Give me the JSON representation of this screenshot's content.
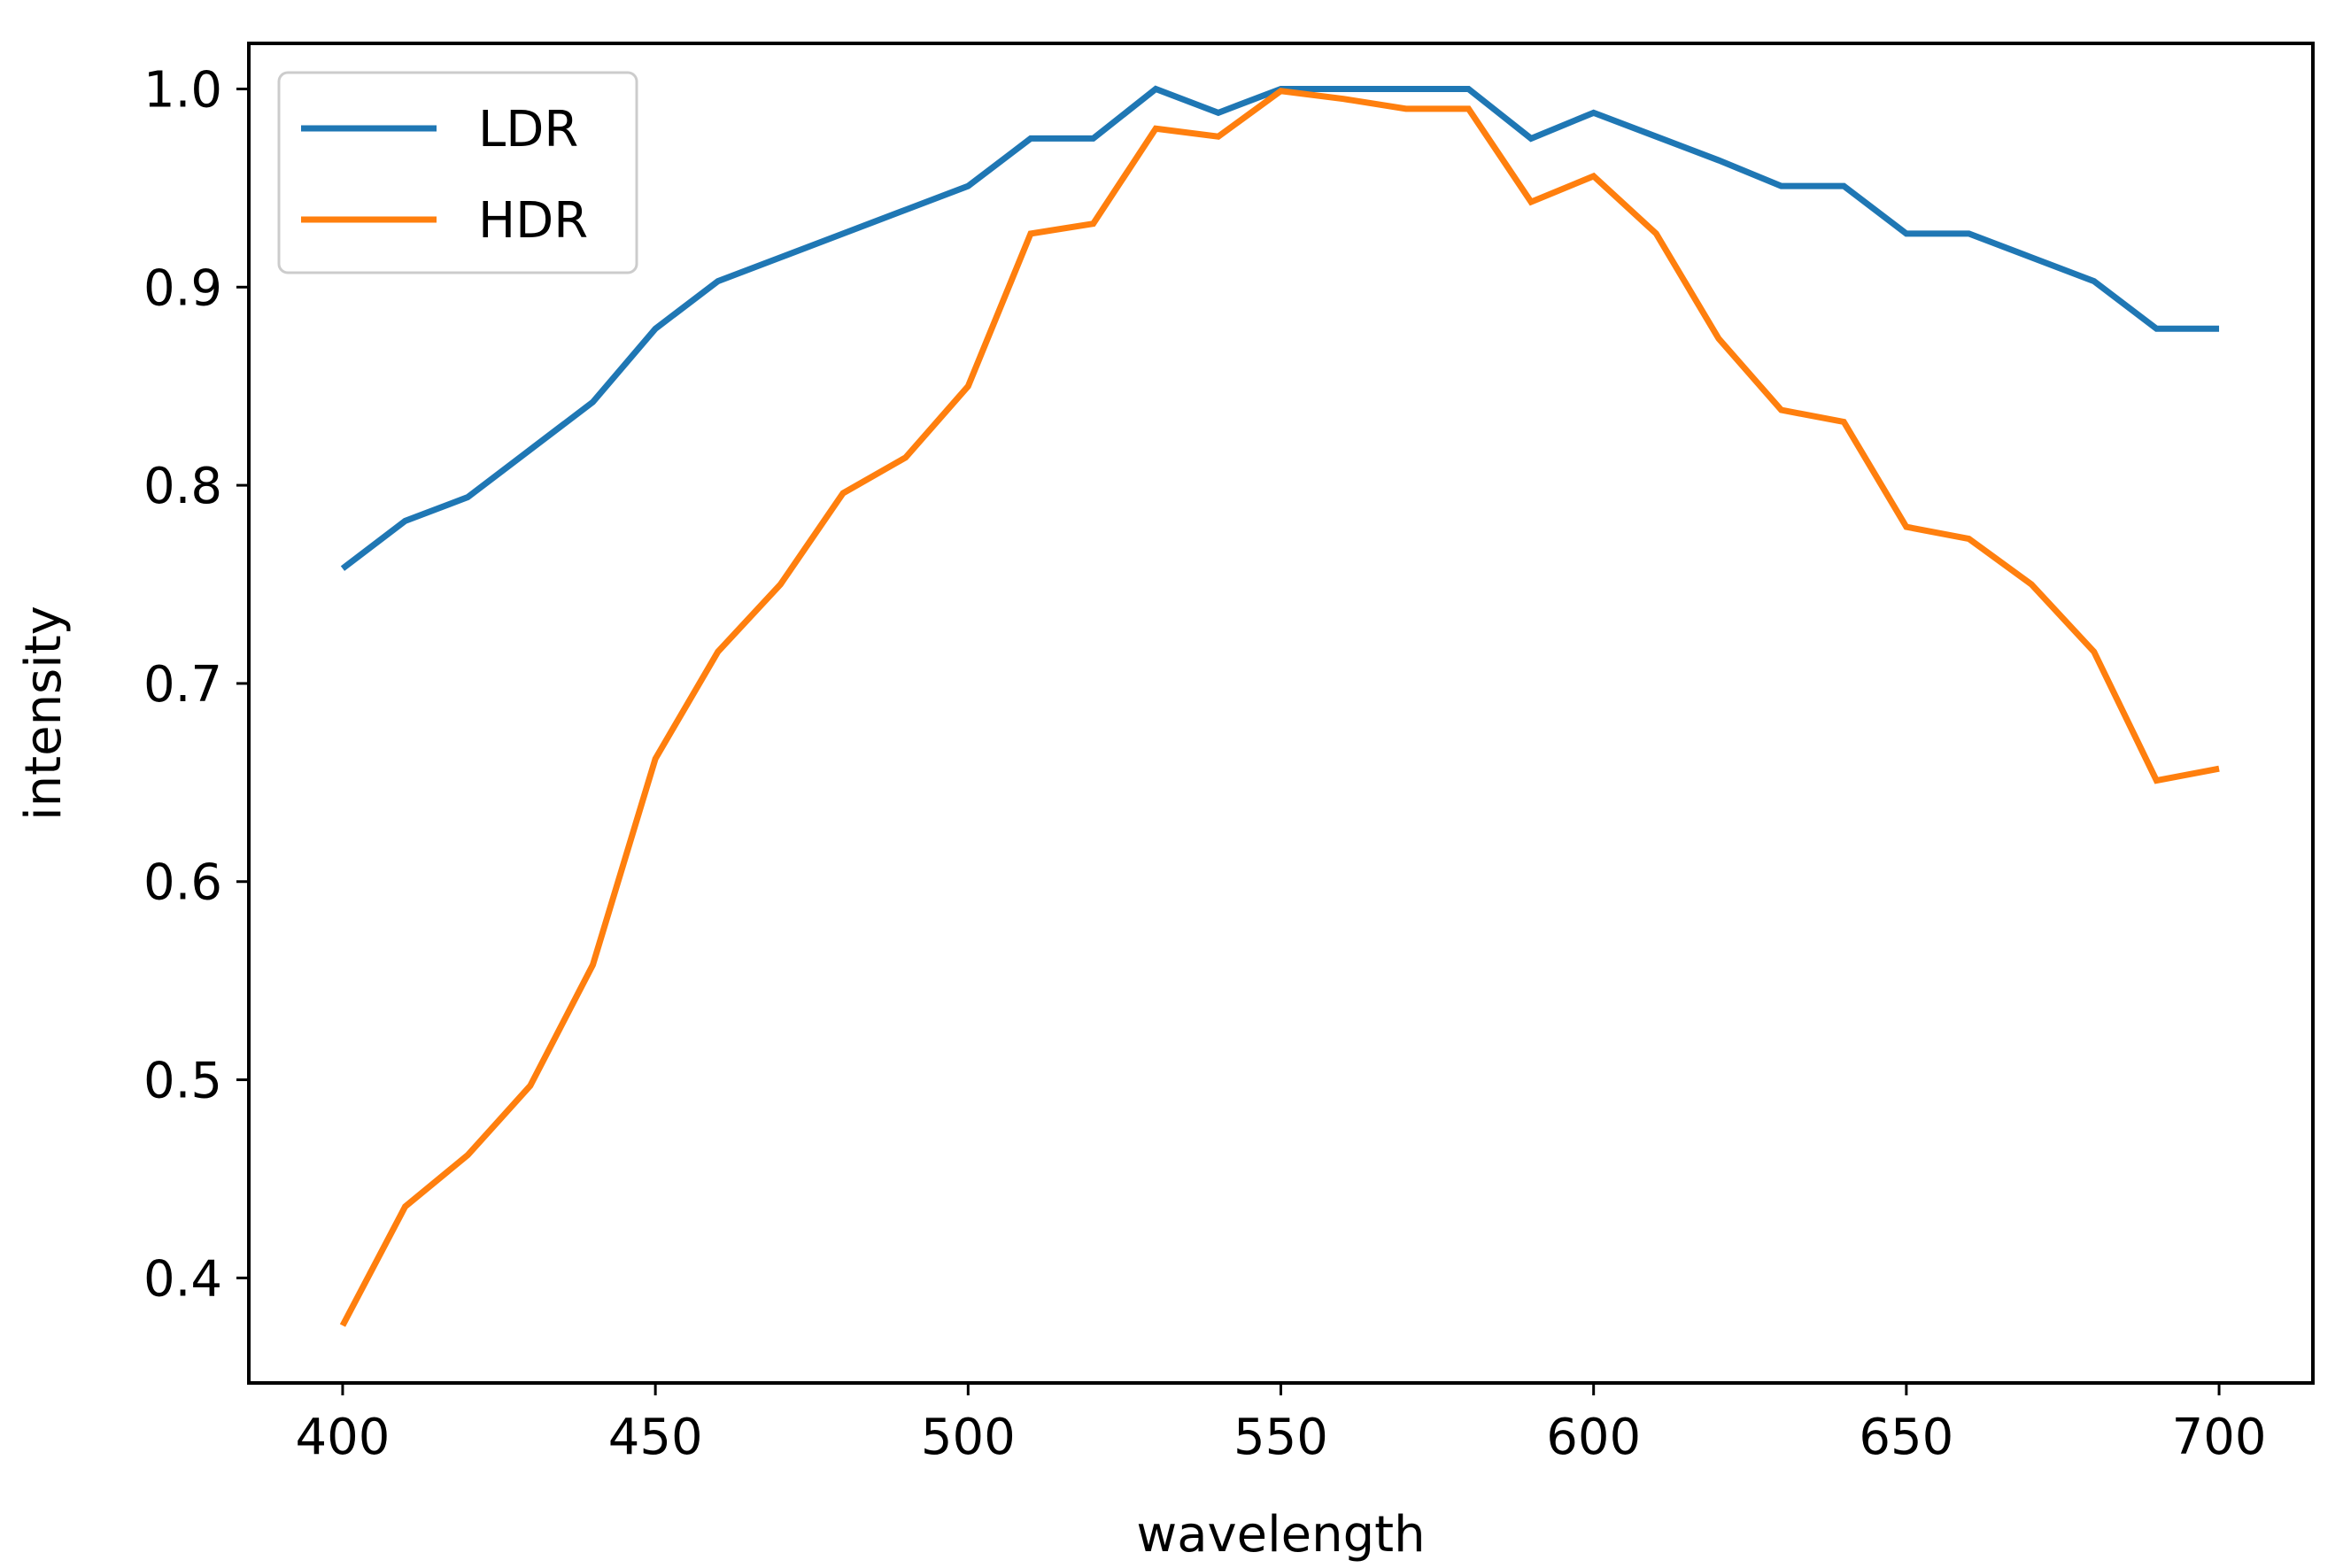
{
  "chart_data": {
    "type": "line",
    "title": "",
    "xlabel": "wavelength",
    "ylabel": "intensity",
    "xlim": [
      385,
      715
    ],
    "ylim": [
      0.347,
      1.023
    ],
    "xticks": [
      400,
      450,
      500,
      550,
      600,
      650,
      700
    ],
    "xtick_labels": [
      "400",
      "450",
      "500",
      "550",
      "600",
      "650",
      "700"
    ],
    "yticks": [
      0.4,
      0.5,
      0.6,
      0.7,
      0.8,
      0.9,
      1.0
    ],
    "ytick_labels": [
      "0.4",
      "0.5",
      "0.6",
      "0.7",
      "0.8",
      "0.9",
      "1.0"
    ],
    "grid": false,
    "legend_position": "top-left",
    "x": [
      400,
      410,
      420,
      430,
      440,
      450,
      460,
      470,
      480,
      490,
      500,
      510,
      520,
      530,
      540,
      550,
      560,
      570,
      580,
      590,
      600,
      610,
      620,
      630,
      640,
      650,
      660,
      670,
      680,
      690,
      700
    ],
    "series": [
      {
        "name": "LDR",
        "color": "#1f77b4",
        "values": [
          0.758,
          0.782,
          0.794,
          0.818,
          0.842,
          0.879,
          0.903,
          0.915,
          0.927,
          0.939,
          0.951,
          0.975,
          0.975,
          1.0,
          0.988,
          1.0,
          1.0,
          1.0,
          1.0,
          0.975,
          0.988,
          0.976,
          0.964,
          0.951,
          0.951,
          0.927,
          0.927,
          0.915,
          0.903,
          0.879,
          0.879
        ]
      },
      {
        "name": "HDR",
        "color": "#ff7f0e",
        "values": [
          0.376,
          0.436,
          0.462,
          0.497,
          0.558,
          0.662,
          0.716,
          0.75,
          0.796,
          0.814,
          0.85,
          0.927,
          0.932,
          0.98,
          0.976,
          0.999,
          0.995,
          0.99,
          0.99,
          0.943,
          0.956,
          0.927,
          0.874,
          0.838,
          0.832,
          0.779,
          0.773,
          0.75,
          0.716,
          0.651,
          0.657
        ]
      }
    ]
  }
}
